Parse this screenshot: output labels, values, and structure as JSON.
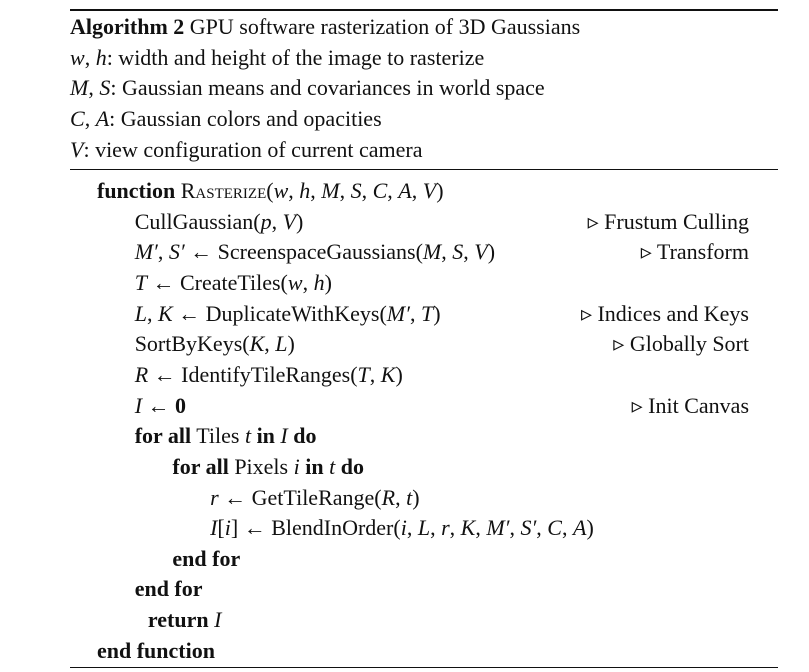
{
  "algorithm": {
    "header": [
      [
        {
          "t": "Algorithm 2",
          "s": "b"
        },
        {
          "t": " GPU software rasterization of 3D Gaussians",
          "s": "n"
        }
      ],
      [
        {
          "t": "w",
          "s": "i"
        },
        {
          "t": ", ",
          "s": "n"
        },
        {
          "t": "h",
          "s": "i"
        },
        {
          "t": ": width and height of the image to rasterize",
          "s": "n"
        }
      ],
      [
        {
          "t": "M",
          "s": "i"
        },
        {
          "t": ", ",
          "s": "n"
        },
        {
          "t": "S",
          "s": "i"
        },
        {
          "t": ": Gaussian means and covariances in world space",
          "s": "n"
        }
      ],
      [
        {
          "t": "C",
          "s": "i"
        },
        {
          "t": ", ",
          "s": "n"
        },
        {
          "t": "A",
          "s": "i"
        },
        {
          "t": ": Gaussian colors and opacities",
          "s": "n"
        }
      ],
      [
        {
          "t": "V",
          "s": "i"
        },
        {
          "t": ": view configuration of current camera",
          "s": "n"
        }
      ]
    ],
    "body": [
      {
        "indent": 0,
        "segs": [
          {
            "t": "function",
            "s": "b"
          },
          {
            "t": " ",
            "s": "n"
          },
          {
            "t": "Rasterize",
            "s": "sc"
          },
          {
            "t": "(",
            "s": "n"
          },
          {
            "t": "w",
            "s": "i"
          },
          {
            "t": ", ",
            "s": "n"
          },
          {
            "t": "h",
            "s": "i"
          },
          {
            "t": ", ",
            "s": "n"
          },
          {
            "t": "M",
            "s": "i"
          },
          {
            "t": ", ",
            "s": "n"
          },
          {
            "t": "S",
            "s": "i"
          },
          {
            "t": ", ",
            "s": "n"
          },
          {
            "t": "C",
            "s": "i"
          },
          {
            "t": ", ",
            "s": "n"
          },
          {
            "t": "A",
            "s": "i"
          },
          {
            "t": ", ",
            "s": "n"
          },
          {
            "t": "V",
            "s": "i"
          },
          {
            "t": ")",
            "s": "n"
          }
        ]
      },
      {
        "indent": 1,
        "segs": [
          {
            "t": "CullGaussian(",
            "s": "n"
          },
          {
            "t": "p",
            "s": "i"
          },
          {
            "t": ", ",
            "s": "n"
          },
          {
            "t": "V",
            "s": "i"
          },
          {
            "t": ")",
            "s": "n"
          }
        ],
        "comment": "▹ Frustum Culling"
      },
      {
        "indent": 1,
        "segs": [
          {
            "t": "M′",
            "s": "i"
          },
          {
            "t": ", ",
            "s": "n"
          },
          {
            "t": "S′",
            "s": "i"
          },
          {
            "t": " ← ScreenspaceGaussians(",
            "s": "n"
          },
          {
            "t": "M",
            "s": "i"
          },
          {
            "t": ", ",
            "s": "n"
          },
          {
            "t": "S",
            "s": "i"
          },
          {
            "t": ", ",
            "s": "n"
          },
          {
            "t": "V",
            "s": "i"
          },
          {
            "t": ")",
            "s": "n"
          }
        ],
        "comment": "▹ Transform"
      },
      {
        "indent": 1,
        "segs": [
          {
            "t": "T",
            "s": "i"
          },
          {
            "t": " ← CreateTiles(",
            "s": "n"
          },
          {
            "t": "w",
            "s": "i"
          },
          {
            "t": ", ",
            "s": "n"
          },
          {
            "t": "h",
            "s": "i"
          },
          {
            "t": ")",
            "s": "n"
          }
        ]
      },
      {
        "indent": 1,
        "segs": [
          {
            "t": "L",
            "s": "i"
          },
          {
            "t": ", ",
            "s": "n"
          },
          {
            "t": "K",
            "s": "i"
          },
          {
            "t": " ← DuplicateWithKeys(",
            "s": "n"
          },
          {
            "t": "M′",
            "s": "i"
          },
          {
            "t": ", ",
            "s": "n"
          },
          {
            "t": "T",
            "s": "i"
          },
          {
            "t": ")",
            "s": "n"
          }
        ],
        "comment": "▹ Indices and Keys"
      },
      {
        "indent": 1,
        "segs": [
          {
            "t": "SortByKeys(",
            "s": "n"
          },
          {
            "t": "K",
            "s": "i"
          },
          {
            "t": ", ",
            "s": "n"
          },
          {
            "t": "L",
            "s": "i"
          },
          {
            "t": ")",
            "s": "n"
          }
        ],
        "comment": "▹ Globally Sort"
      },
      {
        "indent": 1,
        "segs": [
          {
            "t": "R",
            "s": "i"
          },
          {
            "t": " ← IdentifyTileRanges(",
            "s": "n"
          },
          {
            "t": "T",
            "s": "i"
          },
          {
            "t": ", ",
            "s": "n"
          },
          {
            "t": "K",
            "s": "i"
          },
          {
            "t": ")",
            "s": "n"
          }
        ]
      },
      {
        "indent": 1,
        "segs": [
          {
            "t": "I",
            "s": "i"
          },
          {
            "t": " ← ",
            "s": "n"
          },
          {
            "t": "0",
            "s": "b"
          }
        ],
        "comment": "▹ Init Canvas"
      },
      {
        "indent": 1,
        "segs": [
          {
            "t": "for all",
            "s": "b"
          },
          {
            "t": " Tiles ",
            "s": "n"
          },
          {
            "t": "t",
            "s": "i"
          },
          {
            "t": " ",
            "s": "n"
          },
          {
            "t": "in",
            "s": "b"
          },
          {
            "t": " ",
            "s": "n"
          },
          {
            "t": "I",
            "s": "i"
          },
          {
            "t": " ",
            "s": "n"
          },
          {
            "t": "do",
            "s": "b"
          }
        ]
      },
      {
        "indent": 2,
        "segs": [
          {
            "t": "for all",
            "s": "b"
          },
          {
            "t": " Pixels ",
            "s": "n"
          },
          {
            "t": "i",
            "s": "i"
          },
          {
            "t": " ",
            "s": "n"
          },
          {
            "t": "in",
            "s": "b"
          },
          {
            "t": " ",
            "s": "n"
          },
          {
            "t": "t",
            "s": "i"
          },
          {
            "t": " ",
            "s": "n"
          },
          {
            "t": "do",
            "s": "b"
          }
        ]
      },
      {
        "indent": 3,
        "segs": [
          {
            "t": "r",
            "s": "i"
          },
          {
            "t": " ← GetTileRange(",
            "s": "n"
          },
          {
            "t": "R",
            "s": "i"
          },
          {
            "t": ", ",
            "s": "n"
          },
          {
            "t": "t",
            "s": "i"
          },
          {
            "t": ")",
            "s": "n"
          }
        ]
      },
      {
        "indent": 3,
        "segs": [
          {
            "t": "I",
            "s": "i"
          },
          {
            "t": "[",
            "s": "n"
          },
          {
            "t": "i",
            "s": "i"
          },
          {
            "t": "] ← BlendInOrder(",
            "s": "n"
          },
          {
            "t": "i",
            "s": "i"
          },
          {
            "t": ", ",
            "s": "n"
          },
          {
            "t": "L",
            "s": "i"
          },
          {
            "t": ", ",
            "s": "n"
          },
          {
            "t": "r",
            "s": "i"
          },
          {
            "t": ", ",
            "s": "n"
          },
          {
            "t": "K",
            "s": "i"
          },
          {
            "t": ", ",
            "s": "n"
          },
          {
            "t": "M′",
            "s": "i"
          },
          {
            "t": ", ",
            "s": "n"
          },
          {
            "t": "S′",
            "s": "i"
          },
          {
            "t": ", ",
            "s": "n"
          },
          {
            "t": "C",
            "s": "i"
          },
          {
            "t": ", ",
            "s": "n"
          },
          {
            "t": "A",
            "s": "i"
          },
          {
            "t": ")",
            "s": "n"
          }
        ]
      },
      {
        "indent": 2,
        "segs": [
          {
            "t": "end for",
            "s": "b"
          }
        ]
      },
      {
        "indent": 1,
        "segs": [
          {
            "t": "end for",
            "s": "b"
          }
        ]
      },
      {
        "indent": 1.35,
        "segs": [
          {
            "t": "return",
            "s": "b"
          },
          {
            "t": " ",
            "s": "n"
          },
          {
            "t": "I",
            "s": "i"
          }
        ]
      },
      {
        "indent": 0,
        "segs": [
          {
            "t": "end function",
            "s": "b"
          }
        ]
      }
    ]
  }
}
